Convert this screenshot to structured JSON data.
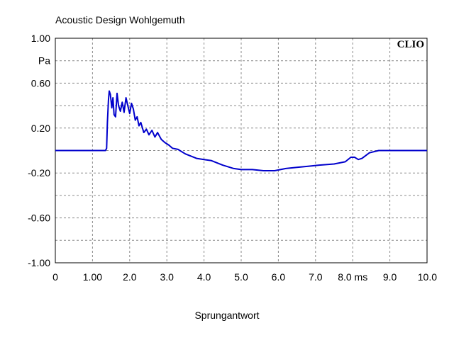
{
  "chart_data": {
    "type": "line",
    "title": "Acoustic Design Wohlgemuth",
    "brand": "CLIO",
    "xlabel": "Sprungantwort",
    "ylabel": "Pa",
    "xlim": [
      0,
      10
    ],
    "ylim": [
      -1,
      1
    ],
    "grid": true,
    "x_ticks": [
      "0",
      "1.00",
      "2.0",
      "3.0",
      "4.0",
      "5.0",
      "6.0",
      "7.0",
      "8.0 ms",
      "9.0",
      "10.0"
    ],
    "y_ticks": [
      "1.00",
      "Pa",
      "0.60",
      "",
      "0.20",
      "",
      "-0.20",
      "",
      "-0.60",
      "",
      "-1.00"
    ],
    "series": [
      {
        "color": "#0000cc",
        "points": [
          [
            0,
            0
          ],
          [
            1.35,
            0
          ],
          [
            1.38,
            0.02
          ],
          [
            1.4,
            0.25
          ],
          [
            1.43,
            0.45
          ],
          [
            1.45,
            0.53
          ],
          [
            1.48,
            0.5
          ],
          [
            1.52,
            0.38
          ],
          [
            1.55,
            0.47
          ],
          [
            1.58,
            0.32
          ],
          [
            1.62,
            0.3
          ],
          [
            1.66,
            0.51
          ],
          [
            1.7,
            0.4
          ],
          [
            1.75,
            0.35
          ],
          [
            1.8,
            0.43
          ],
          [
            1.85,
            0.34
          ],
          [
            1.9,
            0.47
          ],
          [
            1.95,
            0.4
          ],
          [
            2.0,
            0.33
          ],
          [
            2.05,
            0.42
          ],
          [
            2.1,
            0.37
          ],
          [
            2.15,
            0.27
          ],
          [
            2.2,
            0.3
          ],
          [
            2.25,
            0.22
          ],
          [
            2.3,
            0.25
          ],
          [
            2.38,
            0.16
          ],
          [
            2.45,
            0.19
          ],
          [
            2.52,
            0.14
          ],
          [
            2.6,
            0.18
          ],
          [
            2.68,
            0.12
          ],
          [
            2.75,
            0.16
          ],
          [
            2.85,
            0.1
          ],
          [
            2.95,
            0.07
          ],
          [
            3.05,
            0.05
          ],
          [
            3.15,
            0.02
          ],
          [
            3.3,
            0.01
          ],
          [
            3.5,
            -0.03
          ],
          [
            3.8,
            -0.07
          ],
          [
            4.0,
            -0.08
          ],
          [
            4.2,
            -0.09
          ],
          [
            4.5,
            -0.13
          ],
          [
            4.8,
            -0.16
          ],
          [
            5.0,
            -0.17
          ],
          [
            5.3,
            -0.17
          ],
          [
            5.6,
            -0.18
          ],
          [
            5.9,
            -0.18
          ],
          [
            6.2,
            -0.16
          ],
          [
            6.5,
            -0.15
          ],
          [
            6.8,
            -0.14
          ],
          [
            7.1,
            -0.13
          ],
          [
            7.5,
            -0.12
          ],
          [
            7.8,
            -0.1
          ],
          [
            7.95,
            -0.06
          ],
          [
            8.05,
            -0.06
          ],
          [
            8.15,
            -0.08
          ],
          [
            8.25,
            -0.07
          ],
          [
            8.45,
            -0.02
          ],
          [
            8.7,
            0.0
          ],
          [
            9.0,
            0.0
          ],
          [
            9.4,
            0.0
          ],
          [
            9.8,
            0.0
          ],
          [
            10.0,
            0.0
          ]
        ]
      }
    ]
  }
}
